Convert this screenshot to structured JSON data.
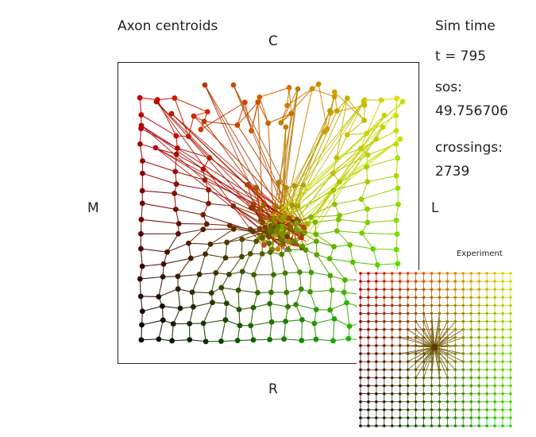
{
  "title": "Axon centroids",
  "labels": {
    "top": "C",
    "left": "M",
    "right": "L",
    "bottom": "R"
  },
  "sim_time": {
    "heading": "Sim time",
    "value_text": "t =  795"
  },
  "sos": {
    "heading": "sos:",
    "value": "49.756706"
  },
  "crossings": {
    "heading": "crossings:",
    "value": "2739"
  },
  "inset": {
    "title": "Experiment"
  },
  "colors": {
    "top_left": "#cc0000",
    "top_right": "#dddd00",
    "bottom_left": "#000000",
    "bottom_right": "#22dd00"
  }
}
